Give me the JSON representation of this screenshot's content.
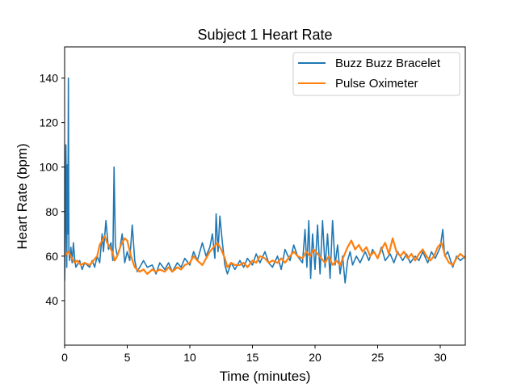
{
  "chart_data": {
    "type": "line",
    "title": "Subject 1 Heart Rate",
    "xlabel": "Time (minutes)",
    "ylabel": "Heart Rate (bpm)",
    "xlim": [
      0,
      32
    ],
    "ylim": [
      20,
      154
    ],
    "xticks": [
      0,
      5,
      10,
      15,
      20,
      25,
      30
    ],
    "yticks": [
      40,
      60,
      80,
      100,
      120,
      140
    ],
    "grid": false,
    "legend_position": "top-right",
    "series": [
      {
        "name": "Buzz Buzz Bracelet",
        "color": "#1f77b4",
        "points": [
          [
            0.0,
            49
          ],
          [
            0.05,
            72
          ],
          [
            0.1,
            110
          ],
          [
            0.13,
            95
          ],
          [
            0.17,
            55
          ],
          [
            0.22,
            101
          ],
          [
            0.26,
            70
          ],
          [
            0.3,
            140
          ],
          [
            0.34,
            62
          ],
          [
            0.4,
            58
          ],
          [
            0.5,
            64
          ],
          [
            0.6,
            57
          ],
          [
            0.7,
            66
          ],
          [
            0.8,
            59
          ],
          [
            0.9,
            55
          ],
          [
            1.0,
            56
          ],
          [
            1.2,
            58
          ],
          [
            1.4,
            54
          ],
          [
            1.6,
            57
          ],
          [
            1.8,
            56
          ],
          [
            2.0,
            55
          ],
          [
            2.2,
            58
          ],
          [
            2.4,
            55
          ],
          [
            2.6,
            60
          ],
          [
            2.8,
            57
          ],
          [
            3.0,
            70
          ],
          [
            3.1,
            62
          ],
          [
            3.3,
            76
          ],
          [
            3.5,
            63
          ],
          [
            3.7,
            66
          ],
          [
            3.85,
            58
          ],
          [
            3.95,
            100
          ],
          [
            4.05,
            65
          ],
          [
            4.2,
            60
          ],
          [
            4.4,
            63
          ],
          [
            4.6,
            70
          ],
          [
            4.8,
            57
          ],
          [
            5.0,
            62
          ],
          [
            5.2,
            58
          ],
          [
            5.4,
            74
          ],
          [
            5.6,
            58
          ],
          [
            5.8,
            53
          ],
          [
            6.0,
            55
          ],
          [
            6.3,
            58
          ],
          [
            6.6,
            55
          ],
          [
            7.0,
            56
          ],
          [
            7.3,
            52
          ],
          [
            7.6,
            57
          ],
          [
            8.0,
            54
          ],
          [
            8.3,
            57
          ],
          [
            8.6,
            53
          ],
          [
            9.0,
            57
          ],
          [
            9.3,
            55
          ],
          [
            9.6,
            59
          ],
          [
            10.0,
            56
          ],
          [
            10.3,
            62
          ],
          [
            10.6,
            58
          ],
          [
            11.0,
            66
          ],
          [
            11.3,
            60
          ],
          [
            11.6,
            64
          ],
          [
            11.8,
            70
          ],
          [
            12.0,
            59
          ],
          [
            12.1,
            79
          ],
          [
            12.25,
            62
          ],
          [
            12.4,
            78
          ],
          [
            12.6,
            66
          ],
          [
            12.8,
            56
          ],
          [
            13.0,
            52
          ],
          [
            13.3,
            57
          ],
          [
            13.6,
            54
          ],
          [
            14.0,
            58
          ],
          [
            14.3,
            55
          ],
          [
            14.6,
            59
          ],
          [
            15.0,
            56
          ],
          [
            15.3,
            61
          ],
          [
            15.6,
            57
          ],
          [
            16.0,
            62
          ],
          [
            16.3,
            57
          ],
          [
            16.6,
            55
          ],
          [
            17.0,
            60
          ],
          [
            17.3,
            54
          ],
          [
            17.6,
            63
          ],
          [
            18.0,
            58
          ],
          [
            18.3,
            65
          ],
          [
            18.6,
            60
          ],
          [
            19.0,
            57
          ],
          [
            19.2,
            72
          ],
          [
            19.35,
            55
          ],
          [
            19.5,
            76
          ],
          [
            19.65,
            50
          ],
          [
            19.8,
            70
          ],
          [
            20.0,
            54
          ],
          [
            20.2,
            74
          ],
          [
            20.4,
            52
          ],
          [
            20.6,
            76
          ],
          [
            20.8,
            55
          ],
          [
            21.0,
            70
          ],
          [
            21.2,
            50
          ],
          [
            21.4,
            76
          ],
          [
            21.6,
            56
          ],
          [
            21.8,
            65
          ],
          [
            22.0,
            52
          ],
          [
            22.2,
            60
          ],
          [
            22.4,
            48
          ],
          [
            22.6,
            58
          ],
          [
            22.8,
            62
          ],
          [
            23.0,
            56
          ],
          [
            23.3,
            60
          ],
          [
            23.6,
            57
          ],
          [
            24.0,
            62
          ],
          [
            24.3,
            58
          ],
          [
            24.6,
            63
          ],
          [
            25.0,
            59
          ],
          [
            25.3,
            64
          ],
          [
            25.6,
            58
          ],
          [
            26.0,
            61
          ],
          [
            26.3,
            57
          ],
          [
            26.6,
            62
          ],
          [
            27.0,
            58
          ],
          [
            27.3,
            61
          ],
          [
            27.6,
            57
          ],
          [
            28.0,
            60
          ],
          [
            28.3,
            58
          ],
          [
            28.6,
            62
          ],
          [
            29.0,
            57
          ],
          [
            29.3,
            62
          ],
          [
            29.6,
            59
          ],
          [
            30.0,
            64
          ],
          [
            30.2,
            72
          ],
          [
            30.35,
            60
          ],
          [
            30.6,
            62
          ],
          [
            31.0,
            55
          ],
          [
            31.3,
            60
          ],
          [
            31.6,
            58
          ],
          [
            32.0,
            60
          ]
        ]
      },
      {
        "name": "Pulse Oximeter",
        "color": "#ff7f0e",
        "points": [
          [
            0.0,
            60
          ],
          [
            0.3,
            62
          ],
          [
            0.6,
            59
          ],
          [
            0.8,
            57
          ],
          [
            1.0,
            58
          ],
          [
            1.3,
            56
          ],
          [
            1.6,
            57
          ],
          [
            2.0,
            56
          ],
          [
            2.3,
            58
          ],
          [
            2.6,
            60
          ],
          [
            2.8,
            65
          ],
          [
            3.0,
            67
          ],
          [
            3.2,
            69
          ],
          [
            3.4,
            66
          ],
          [
            3.6,
            64
          ],
          [
            3.8,
            62
          ],
          [
            4.0,
            58
          ],
          [
            4.2,
            60
          ],
          [
            4.5,
            65
          ],
          [
            4.8,
            68
          ],
          [
            5.0,
            67
          ],
          [
            5.3,
            60
          ],
          [
            5.6,
            55
          ],
          [
            6.0,
            53
          ],
          [
            6.3,
            54
          ],
          [
            6.6,
            52
          ],
          [
            7.0,
            54
          ],
          [
            7.3,
            53
          ],
          [
            7.6,
            54
          ],
          [
            8.0,
            53
          ],
          [
            8.3,
            55
          ],
          [
            8.6,
            53
          ],
          [
            9.0,
            55
          ],
          [
            9.3,
            54
          ],
          [
            9.6,
            56
          ],
          [
            10.0,
            57
          ],
          [
            10.3,
            60
          ],
          [
            10.6,
            58
          ],
          [
            11.0,
            56
          ],
          [
            11.3,
            59
          ],
          [
            11.6,
            62
          ],
          [
            11.9,
            64
          ],
          [
            12.2,
            66
          ],
          [
            12.5,
            63
          ],
          [
            12.8,
            59
          ],
          [
            13.0,
            55
          ],
          [
            13.3,
            57
          ],
          [
            13.6,
            56
          ],
          [
            14.0,
            56
          ],
          [
            14.3,
            57
          ],
          [
            14.6,
            55
          ],
          [
            15.0,
            58
          ],
          [
            15.3,
            57
          ],
          [
            15.6,
            60
          ],
          [
            16.0,
            59
          ],
          [
            16.3,
            57
          ],
          [
            16.6,
            58
          ],
          [
            17.0,
            57
          ],
          [
            17.3,
            59
          ],
          [
            17.6,
            57
          ],
          [
            18.0,
            60
          ],
          [
            18.3,
            62
          ],
          [
            18.6,
            60
          ],
          [
            19.0,
            59
          ],
          [
            19.3,
            62
          ],
          [
            19.6,
            60
          ],
          [
            19.9,
            63
          ],
          [
            20.2,
            61
          ],
          [
            20.5,
            59
          ],
          [
            20.8,
            57
          ],
          [
            21.1,
            60
          ],
          [
            21.4,
            56
          ],
          [
            21.7,
            58
          ],
          [
            22.0,
            56
          ],
          [
            22.3,
            60
          ],
          [
            22.6,
            64
          ],
          [
            22.9,
            67
          ],
          [
            23.2,
            63
          ],
          [
            23.5,
            65
          ],
          [
            23.8,
            62
          ],
          [
            24.1,
            64
          ],
          [
            24.4,
            60
          ],
          [
            24.7,
            62
          ],
          [
            25.0,
            59
          ],
          [
            25.3,
            63
          ],
          [
            25.6,
            66
          ],
          [
            25.9,
            61
          ],
          [
            26.2,
            68
          ],
          [
            26.5,
            62
          ],
          [
            26.8,
            60
          ],
          [
            27.1,
            62
          ],
          [
            27.4,
            59
          ],
          [
            27.7,
            61
          ],
          [
            28.0,
            58
          ],
          [
            28.3,
            61
          ],
          [
            28.6,
            63
          ],
          [
            28.9,
            60
          ],
          [
            29.2,
            58
          ],
          [
            29.5,
            60
          ],
          [
            29.8,
            64
          ],
          [
            30.1,
            66
          ],
          [
            30.4,
            60
          ],
          [
            30.7,
            57
          ],
          [
            31.0,
            56
          ],
          [
            31.3,
            59
          ],
          [
            31.6,
            61
          ],
          [
            32.0,
            59
          ]
        ]
      }
    ]
  }
}
